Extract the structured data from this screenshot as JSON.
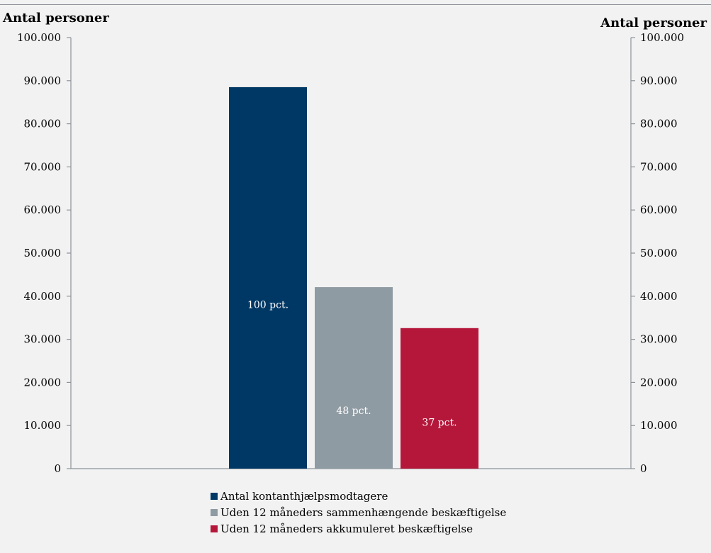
{
  "chart_data": {
    "type": "bar",
    "ylabel_left": "Antal personer",
    "ylabel_right": "Antal personer",
    "ylim": [
      0,
      100000
    ],
    "yticks": [
      "0",
      "10.000",
      "20.000",
      "30.000",
      "40.000",
      "50.000",
      "60.000",
      "70.000",
      "80.000",
      "90.000",
      "100.000"
    ],
    "grid": false,
    "legend_position": "bottom",
    "series": [
      {
        "name": "Antal kontanthjælpsmodtagere",
        "value": 88500,
        "label": "100 pct.",
        "color": "#003865"
      },
      {
        "name": "Uden 12 måneders sammenhængende beskæftigelse",
        "value": 42100,
        "label": "48 pct.",
        "color": "#8f9ba2"
      },
      {
        "name": "Uden 12 måneders akkumuleret beskæftigelse",
        "value": 32600,
        "label": "37 pct.",
        "color": "#b5173a"
      }
    ]
  }
}
